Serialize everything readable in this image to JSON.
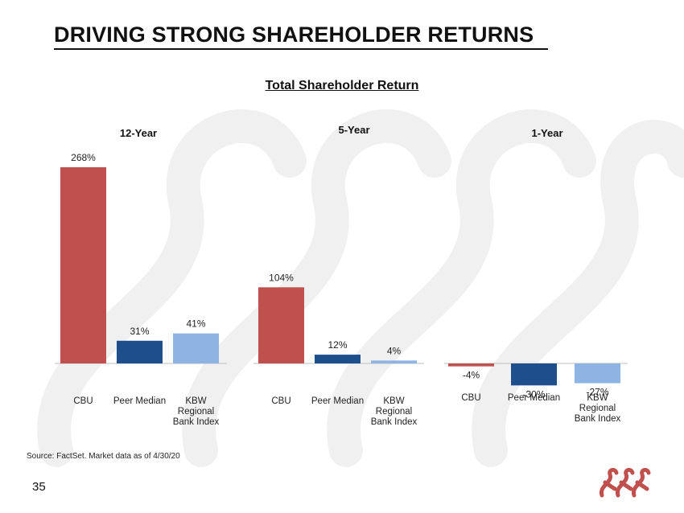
{
  "slide": {
    "title": "DRIVING STRONG SHAREHOLDER RETURNS",
    "source": "Source:  FactSet. Market data as of 4/30/20",
    "page_number": "35"
  },
  "colors": {
    "cbu": "#c0504d",
    "peer": "#1f4e8c",
    "kbw": "#8db4e2",
    "watermark": "#f1f1f1",
    "logo": "#c0504d"
  },
  "chart_data": {
    "type": "bar",
    "title": "Total Shareholder Return",
    "ylabel": "",
    "xlabel": "",
    "ylim": [
      -30,
      268
    ],
    "categories": [
      "CBU",
      "Peer Median",
      "KBW Regional Bank Index"
    ],
    "category_lines": [
      [
        "CBU"
      ],
      [
        "Peer Median"
      ],
      [
        "KBW",
        "Regional",
        "Bank Index"
      ]
    ],
    "groups": [
      {
        "name": "12-Year",
        "values": [
          268,
          31,
          41
        ],
        "labels": [
          "268%",
          "31%",
          "41%"
        ]
      },
      {
        "name": "5-Year",
        "values": [
          104,
          12,
          4
        ],
        "labels": [
          "104%",
          "12%",
          "4%"
        ]
      },
      {
        "name": "1-Year",
        "values": [
          -4,
          -30,
          -27
        ],
        "labels": [
          "-4%",
          "-30%",
          "-27%"
        ]
      }
    ]
  }
}
